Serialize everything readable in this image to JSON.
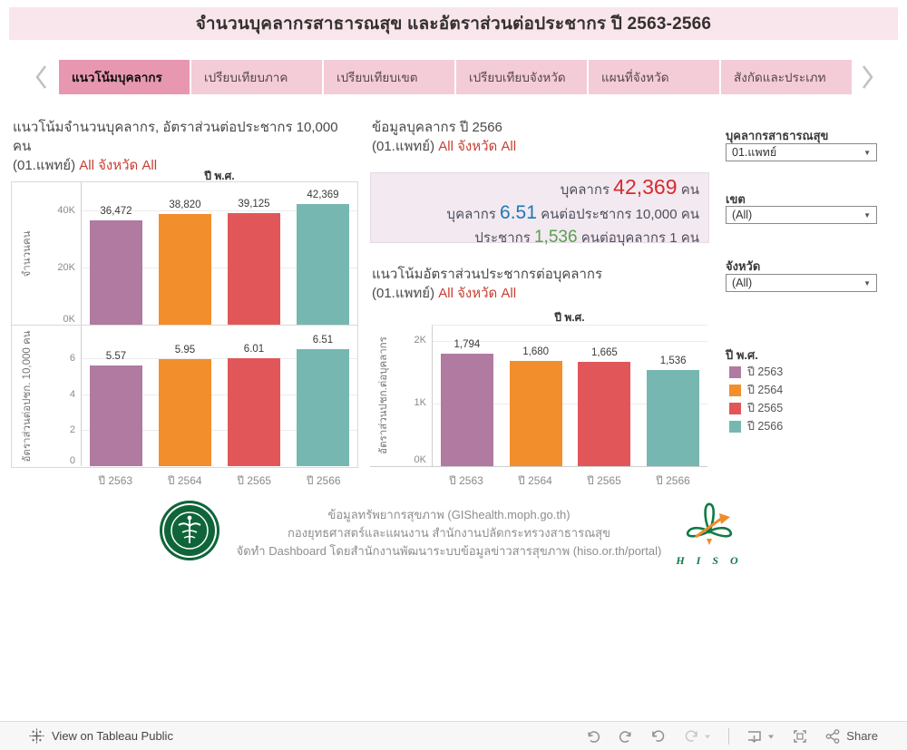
{
  "header": {
    "title": "จำนวนบุคลากรสาธารณสุข และอัตราส่วนต่อประชากร ปี 2563-2566"
  },
  "tabs": [
    {
      "label": "แนวโน้มบุคลากร",
      "active": true
    },
    {
      "label": "เปรียบเทียบภาค",
      "active": false
    },
    {
      "label": "เปรียบเทียบเขต",
      "active": false
    },
    {
      "label": "เปรียบเทียบจังหวัด",
      "active": false
    },
    {
      "label": "แผนที่จังหวัด",
      "active": false
    },
    {
      "label": "สังกัดและประเภท",
      "active": false
    }
  ],
  "sections": {
    "trend": {
      "title": "แนวโน้มจำนวนบุคลากร, อัตราส่วนต่อประชากร 10,000 คน",
      "subtitle_prefix": "(01.แพทย์)",
      "subtitle_highlight": "All จังหวัด All"
    },
    "info": {
      "title": "ข้อมูลบุคลากร ปี 2566",
      "subtitle_prefix": "(01.แพทย์)",
      "subtitle_highlight": "All จังหวัด All"
    },
    "pop_ratio": {
      "title": "แนวโน้มอัตราส่วนประชากรต่อบุคลากร",
      "subtitle_prefix": "(01.แพทย์)",
      "subtitle_highlight": "All จังหวัด All"
    }
  },
  "info_panel": {
    "lines": [
      {
        "prefix": "บุคลากร",
        "value": "42,369",
        "suffix": "คน"
      },
      {
        "prefix": "บุคลากร",
        "value": "6.51",
        "suffix": "คนต่อประชากร 10,000 คน"
      },
      {
        "prefix": "ประชากร",
        "value": "1,536",
        "suffix": "คนต่อบุคลากร 1 คน"
      }
    ]
  },
  "chart_data": [
    {
      "id": "personnel-count-trend",
      "type": "bar",
      "title": "แนวโน้มจำนวนบุคลากร (01.แพทย์) All จังหวัด All",
      "categories": [
        "ปี 2563",
        "ปี 2564",
        "ปี 2565",
        "ปี 2566"
      ],
      "values": [
        36472,
        38820,
        39125,
        42369
      ],
      "value_labels": [
        "36,472",
        "38,820",
        "39,125",
        "42,369"
      ],
      "xlabel": "ปี พ.ศ.",
      "ylabel": "จำนวนคน",
      "ylim": [
        0,
        50000
      ],
      "yticks": [
        {
          "v": 0,
          "label": "0K"
        },
        {
          "v": 20000,
          "label": "20K"
        },
        {
          "v": 40000,
          "label": "40K"
        }
      ],
      "colors": [
        "#b07aa1",
        "#f28e2b",
        "#e15759",
        "#76b7b2"
      ],
      "grid": true,
      "show_xlabels": false
    },
    {
      "id": "ratio-per-10000-population",
      "type": "bar",
      "title": "อัตราส่วนต่อประชากร 10,000 คน (01.แพทย์) All จังหวัด All",
      "categories": [
        "ปี 2563",
        "ปี 2564",
        "ปี 2565",
        "ปี 2566"
      ],
      "values": [
        5.57,
        5.95,
        6.01,
        6.51
      ],
      "value_labels": [
        "5.57",
        "5.95",
        "6.01",
        "6.51"
      ],
      "xlabel": "",
      "ylabel": "อัตราส่วนต่อปชก. 10,000 คน",
      "ylim": [
        0,
        7.8
      ],
      "yticks": [
        {
          "v": 0,
          "label": "0"
        },
        {
          "v": 2,
          "label": "2"
        },
        {
          "v": 4,
          "label": "4"
        },
        {
          "v": 6,
          "label": "6"
        }
      ],
      "colors": [
        "#b07aa1",
        "#f28e2b",
        "#e15759",
        "#76b7b2"
      ],
      "grid": true,
      "show_xlabels": true
    },
    {
      "id": "population-per-personnel-trend",
      "type": "bar",
      "title": "แนวโน้มอัตราส่วนประชากรต่อบุคลากร (01.แพทย์) All จังหวัด All",
      "categories": [
        "ปี 2563",
        "ปี 2564",
        "ปี 2565",
        "ปี 2566"
      ],
      "values": [
        1794,
        1680,
        1665,
        1536
      ],
      "value_labels": [
        "1,794",
        "1,680",
        "1,665",
        "1,536"
      ],
      "xlabel": "ปี พ.ศ.",
      "ylabel": "อัตราส่วนปชก.ต่อบุคลากร",
      "ylim": [
        0,
        2250
      ],
      "yticks": [
        {
          "v": 0,
          "label": "0K"
        },
        {
          "v": 1000,
          "label": "1K"
        },
        {
          "v": 2000,
          "label": "2K"
        }
      ],
      "colors": [
        "#b07aa1",
        "#f28e2b",
        "#e15759",
        "#76b7b2"
      ],
      "grid": true,
      "show_xlabels": true
    }
  ],
  "filters": [
    {
      "label": "บุคลากรสาธารณสุข",
      "value": "01.แพทย์"
    },
    {
      "label": "เขต",
      "value": "(All)"
    },
    {
      "label": "จังหวัด",
      "value": "(All)"
    }
  ],
  "legend": {
    "title": "ปี พ.ศ.",
    "items": [
      {
        "label": "ปี 2563",
        "color": "#b07aa1"
      },
      {
        "label": "ปี 2564",
        "color": "#f28e2b"
      },
      {
        "label": "ปี 2565",
        "color": "#e15759"
      },
      {
        "label": "ปี 2566",
        "color": "#76b7b2"
      }
    ]
  },
  "footer": {
    "lines": [
      "ข้อมูลทรัพยากรสุขภาพ (GIShealth.moph.go.th)",
      "กองยุทธศาสตร์และแผนงาน สำนักงานปลัดกระทรวงสาธารณสุข",
      "จัดทำ Dashboard โดยสำนักงานพัฒนาระบบข้อมูลข่าวสารสุขภาพ (hiso.or.th/portal)"
    ],
    "hiso_text": "H I S O"
  },
  "toolbar": {
    "view_label": "View on Tableau Public",
    "share_label": "Share"
  },
  "colors": {
    "header_bg": "#f8e6ec",
    "tab_active_bg": "#e897b0",
    "tab_inactive_bg": "#f3ccd7",
    "accent_red": "#c63f33",
    "stat_red": "#d62b2b",
    "stat_blue": "#1f77b4",
    "stat_green": "#59a14f",
    "info_panel_bg": "#f2e9f1"
  }
}
